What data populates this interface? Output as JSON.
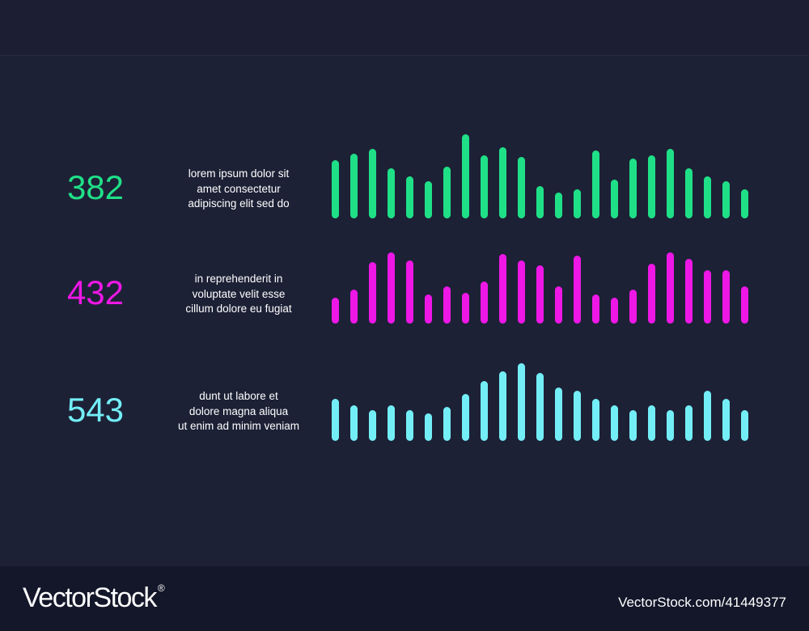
{
  "chart_data": [
    {
      "type": "bar",
      "metric": "382",
      "description": [
        "lorem ipsum dolor sit",
        "amet consectetur",
        "adipiscing elit sed do"
      ],
      "color": "#1fe087",
      "values": [
        72,
        80,
        86,
        62,
        52,
        46,
        64,
        104,
        78,
        88,
        76,
        40,
        32,
        36,
        84,
        48,
        74,
        78,
        86,
        62,
        52,
        46,
        36
      ],
      "ylim": [
        0,
        110
      ]
    },
    {
      "type": "bar",
      "metric": "432",
      "description": [
        "in reprehenderit in",
        "voluptate velit esse",
        "cillum dolore eu fugiat"
      ],
      "color": "#ee17e6",
      "values": [
        32,
        42,
        76,
        88,
        78,
        36,
        46,
        38,
        52,
        86,
        78,
        72,
        46,
        84,
        36,
        32,
        42,
        74,
        88,
        80,
        66,
        66,
        46
      ],
      "ylim": [
        0,
        110
      ]
    },
    {
      "type": "bar",
      "metric": "543",
      "description": [
        "dunt ut labore et",
        "dolore magna aliqua",
        "ut enim ad minim veniam"
      ],
      "color": "#73eef6",
      "values": [
        52,
        44,
        38,
        44,
        38,
        34,
        42,
        58,
        74,
        86,
        96,
        84,
        66,
        62,
        52,
        44,
        38,
        44,
        38,
        44,
        62,
        52,
        38
      ],
      "ylim": [
        0,
        110
      ]
    }
  ],
  "footer": {
    "logo": "VectorStock",
    "logo_reg": "®",
    "stock_id": "VectorStock.com/41449377"
  }
}
